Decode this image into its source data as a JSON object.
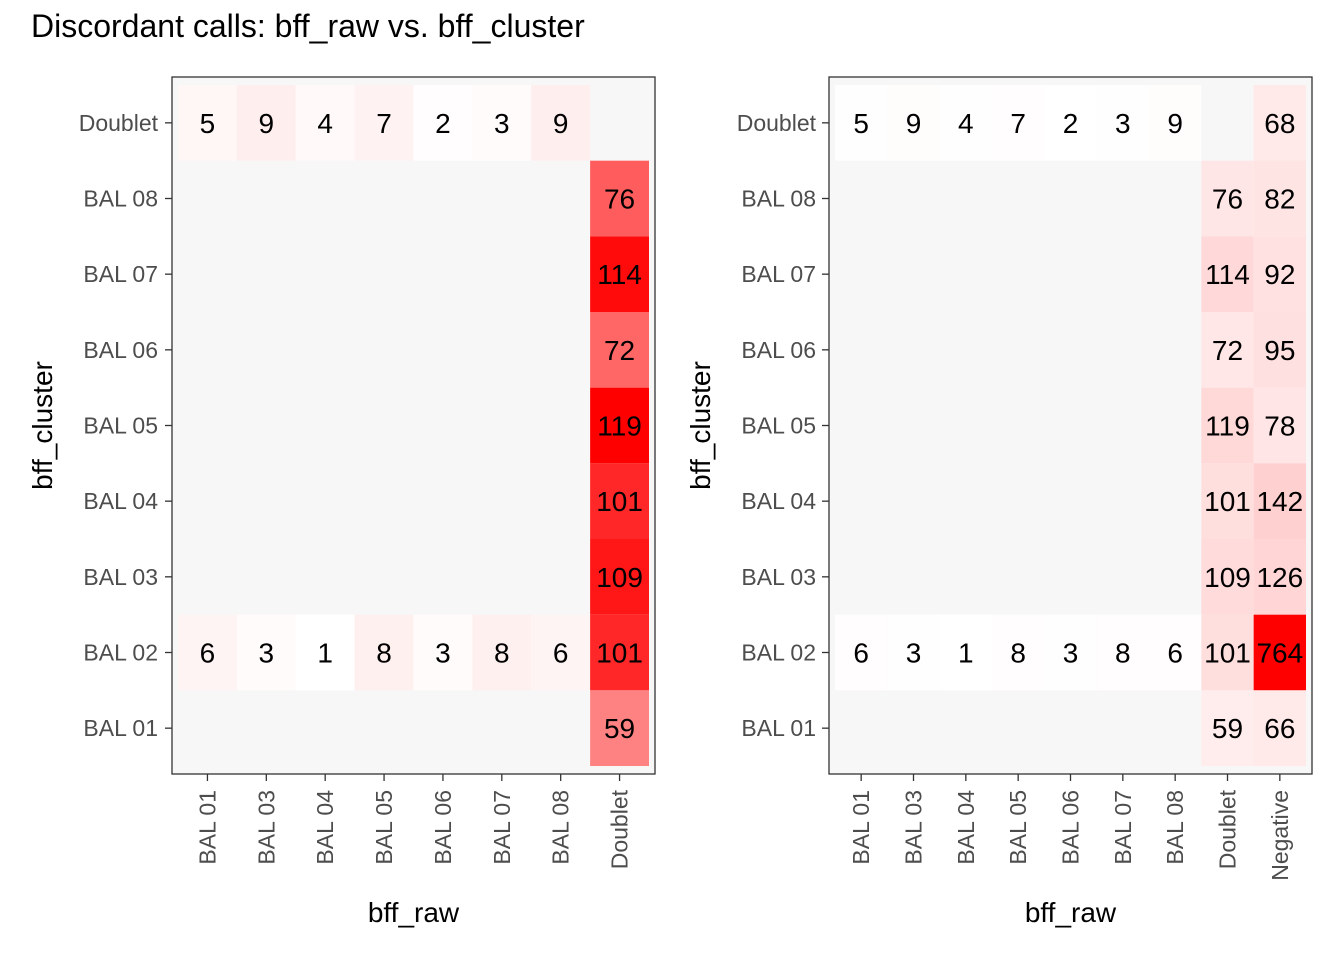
{
  "title": "Discordant calls: bff_raw vs. bff_cluster",
  "colors": {
    "panel_background": "#f7f7f7",
    "low": "#ffffff",
    "high": "#ff0000",
    "tick": "#333333",
    "border": "#333333"
  },
  "chart_data": [
    {
      "type": "heatmap",
      "xlabel": "bff_raw",
      "ylabel": "bff_cluster",
      "x_categories": [
        "BAL 01",
        "BAL 03",
        "BAL 04",
        "BAL 05",
        "BAL 06",
        "BAL 07",
        "BAL 08",
        "Doublet"
      ],
      "y_categories": [
        "BAL 01",
        "BAL 02",
        "BAL 03",
        "BAL 04",
        "BAL 05",
        "BAL 06",
        "BAL 07",
        "BAL 08",
        "Doublet"
      ],
      "cells": [
        {
          "x": "BAL 01",
          "y": "Doublet",
          "value": 5
        },
        {
          "x": "BAL 03",
          "y": "Doublet",
          "value": 9
        },
        {
          "x": "BAL 04",
          "y": "Doublet",
          "value": 4
        },
        {
          "x": "BAL 05",
          "y": "Doublet",
          "value": 7
        },
        {
          "x": "BAL 06",
          "y": "Doublet",
          "value": 2
        },
        {
          "x": "BAL 07",
          "y": "Doublet",
          "value": 3
        },
        {
          "x": "BAL 08",
          "y": "Doublet",
          "value": 9
        },
        {
          "x": "Doublet",
          "y": "BAL 08",
          "value": 76
        },
        {
          "x": "Doublet",
          "y": "BAL 07",
          "value": 114
        },
        {
          "x": "Doublet",
          "y": "BAL 06",
          "value": 72
        },
        {
          "x": "Doublet",
          "y": "BAL 05",
          "value": 119
        },
        {
          "x": "Doublet",
          "y": "BAL 04",
          "value": 101
        },
        {
          "x": "Doublet",
          "y": "BAL 03",
          "value": 109
        },
        {
          "x": "BAL 01",
          "y": "BAL 02",
          "value": 6
        },
        {
          "x": "BAL 03",
          "y": "BAL 02",
          "value": 3
        },
        {
          "x": "BAL 04",
          "y": "BAL 02",
          "value": 1
        },
        {
          "x": "BAL 05",
          "y": "BAL 02",
          "value": 8
        },
        {
          "x": "BAL 06",
          "y": "BAL 02",
          "value": 3
        },
        {
          "x": "BAL 07",
          "y": "BAL 02",
          "value": 8
        },
        {
          "x": "BAL 08",
          "y": "BAL 02",
          "value": 6
        },
        {
          "x": "Doublet",
          "y": "BAL 02",
          "value": 101
        },
        {
          "x": "Doublet",
          "y": "BAL 01",
          "value": 59
        }
      ]
    },
    {
      "type": "heatmap",
      "xlabel": "bff_raw",
      "ylabel": "bff_cluster",
      "x_categories": [
        "BAL 01",
        "BAL 03",
        "BAL 04",
        "BAL 05",
        "BAL 06",
        "BAL 07",
        "BAL 08",
        "Doublet",
        "Negative"
      ],
      "y_categories": [
        "BAL 01",
        "BAL 02",
        "BAL 03",
        "BAL 04",
        "BAL 05",
        "BAL 06",
        "BAL 07",
        "BAL 08",
        "Doublet"
      ],
      "cells": [
        {
          "x": "BAL 01",
          "y": "Doublet",
          "value": 5
        },
        {
          "x": "BAL 03",
          "y": "Doublet",
          "value": 9
        },
        {
          "x": "BAL 04",
          "y": "Doublet",
          "value": 4
        },
        {
          "x": "BAL 05",
          "y": "Doublet",
          "value": 7
        },
        {
          "x": "BAL 06",
          "y": "Doublet",
          "value": 2
        },
        {
          "x": "BAL 07",
          "y": "Doublet",
          "value": 3
        },
        {
          "x": "BAL 08",
          "y": "Doublet",
          "value": 9
        },
        {
          "x": "Negative",
          "y": "Doublet",
          "value": 68
        },
        {
          "x": "Doublet",
          "y": "BAL 08",
          "value": 76
        },
        {
          "x": "Negative",
          "y": "BAL 08",
          "value": 82
        },
        {
          "x": "Doublet",
          "y": "BAL 07",
          "value": 114
        },
        {
          "x": "Negative",
          "y": "BAL 07",
          "value": 92
        },
        {
          "x": "Doublet",
          "y": "BAL 06",
          "value": 72
        },
        {
          "x": "Negative",
          "y": "BAL 06",
          "value": 95
        },
        {
          "x": "Doublet",
          "y": "BAL 05",
          "value": 119
        },
        {
          "x": "Negative",
          "y": "BAL 05",
          "value": 78
        },
        {
          "x": "Doublet",
          "y": "BAL 04",
          "value": 101
        },
        {
          "x": "Negative",
          "y": "BAL 04",
          "value": 142
        },
        {
          "x": "Doublet",
          "y": "BAL 03",
          "value": 109
        },
        {
          "x": "Negative",
          "y": "BAL 03",
          "value": 126
        },
        {
          "x": "BAL 01",
          "y": "BAL 02",
          "value": 6
        },
        {
          "x": "BAL 03",
          "y": "BAL 02",
          "value": 3
        },
        {
          "x": "BAL 04",
          "y": "BAL 02",
          "value": 1
        },
        {
          "x": "BAL 05",
          "y": "BAL 02",
          "value": 8
        },
        {
          "x": "BAL 06",
          "y": "BAL 02",
          "value": 3
        },
        {
          "x": "BAL 07",
          "y": "BAL 02",
          "value": 8
        },
        {
          "x": "BAL 08",
          "y": "BAL 02",
          "value": 6
        },
        {
          "x": "Doublet",
          "y": "BAL 02",
          "value": 101
        },
        {
          "x": "Negative",
          "y": "BAL 02",
          "value": 764
        },
        {
          "x": "Doublet",
          "y": "BAL 01",
          "value": 59
        },
        {
          "x": "Negative",
          "y": "BAL 01",
          "value": 66
        }
      ]
    }
  ]
}
